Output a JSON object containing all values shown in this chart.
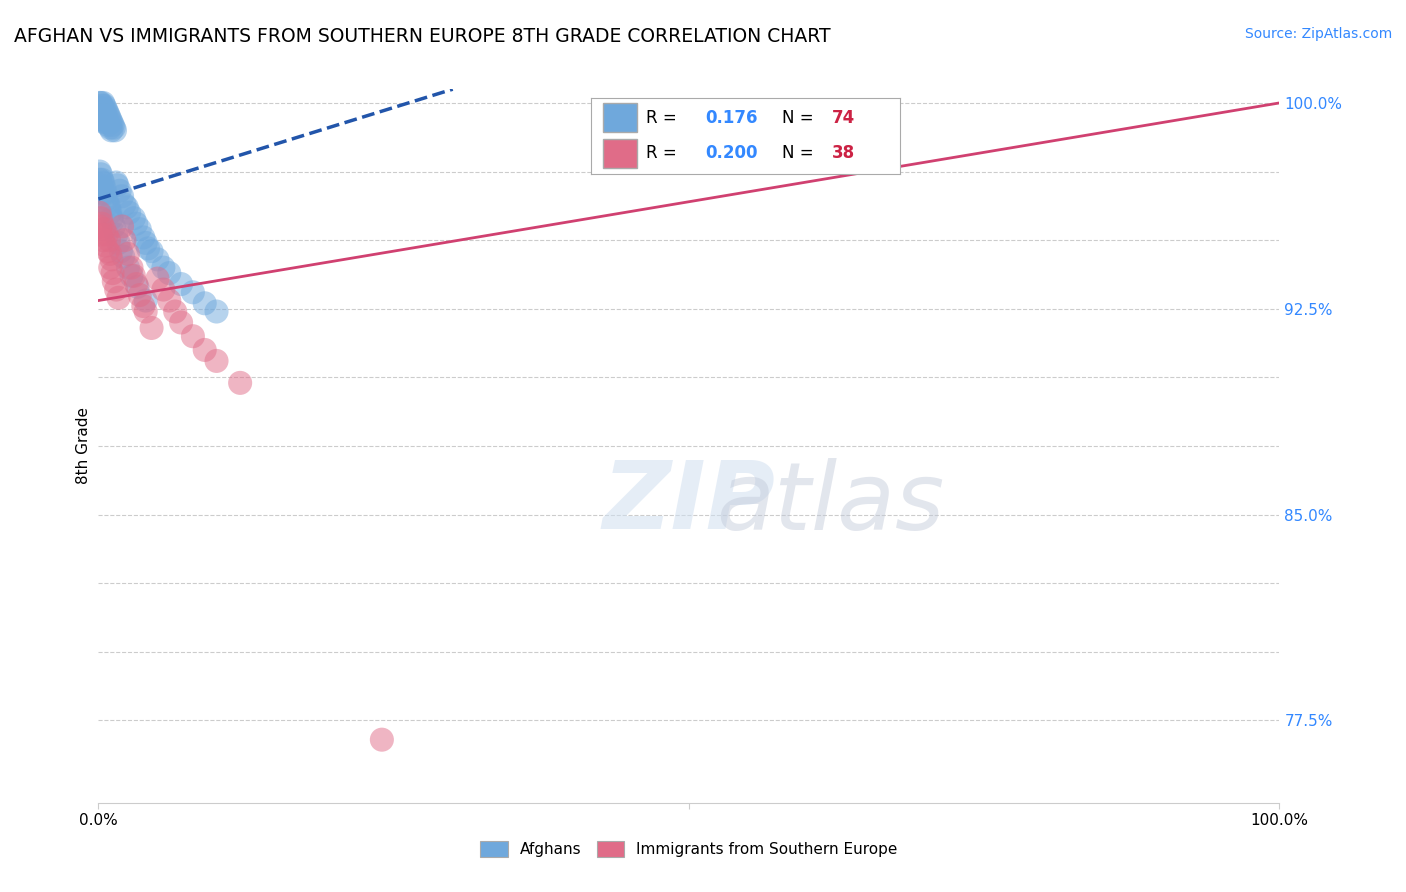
{
  "title": "AFGHAN VS IMMIGRANTS FROM SOUTHERN EUROPE 8TH GRADE CORRELATION CHART",
  "source": "Source: ZipAtlas.com",
  "ylabel": "8th Grade",
  "xlim": [
    0.0,
    1.0
  ],
  "ylim": [
    0.745,
    1.005
  ],
  "blue_R": 0.176,
  "blue_N": 74,
  "pink_R": 0.2,
  "pink_N": 38,
  "blue_color": "#6fa8dc",
  "pink_color": "#e06c88",
  "blue_line_color": "#2255aa",
  "pink_line_color": "#d04070",
  "grid_color": "#cccccc",
  "ytick_positions": [
    0.775,
    0.8,
    0.825,
    0.85,
    0.875,
    0.9,
    0.925,
    0.95,
    0.975,
    1.0
  ],
  "ytick_labels": [
    "77.5%",
    "",
    "",
    "85.0%",
    "",
    "",
    "92.5%",
    "",
    "",
    "100.0%"
  ],
  "blue_scatter_x": [
    0.001,
    0.001,
    0.001,
    0.002,
    0.002,
    0.002,
    0.003,
    0.003,
    0.004,
    0.004,
    0.005,
    0.005,
    0.005,
    0.006,
    0.006,
    0.007,
    0.007,
    0.008,
    0.008,
    0.009,
    0.01,
    0.01,
    0.011,
    0.011,
    0.012,
    0.013,
    0.014,
    0.015,
    0.016,
    0.018,
    0.02,
    0.022,
    0.024,
    0.026,
    0.03,
    0.032,
    0.035,
    0.038,
    0.04,
    0.042,
    0.045,
    0.05,
    0.055,
    0.06,
    0.07,
    0.08,
    0.09,
    0.1,
    0.001,
    0.001,
    0.001,
    0.002,
    0.002,
    0.003,
    0.003,
    0.004,
    0.004,
    0.005,
    0.006,
    0.007,
    0.008,
    0.009,
    0.01,
    0.011,
    0.012,
    0.013,
    0.015,
    0.017,
    0.019,
    0.021,
    0.025,
    0.028,
    0.033,
    0.04
  ],
  "blue_scatter_y": [
    1.0,
    0.998,
    0.996,
    1.0,
    0.998,
    0.994,
    0.999,
    0.996,
    1.0,
    0.997,
    0.999,
    0.996,
    0.993,
    0.998,
    0.994,
    0.997,
    0.993,
    0.996,
    0.992,
    0.995,
    0.994,
    0.991,
    0.993,
    0.99,
    0.992,
    0.991,
    0.99,
    0.971,
    0.97,
    0.968,
    0.966,
    0.963,
    0.962,
    0.96,
    0.958,
    0.956,
    0.954,
    0.951,
    0.949,
    0.947,
    0.946,
    0.943,
    0.94,
    0.938,
    0.934,
    0.931,
    0.927,
    0.924,
    0.975,
    0.972,
    0.969,
    0.974,
    0.97,
    0.972,
    0.969,
    0.971,
    0.967,
    0.969,
    0.967,
    0.965,
    0.963,
    0.962,
    0.96,
    0.958,
    0.957,
    0.955,
    0.952,
    0.949,
    0.946,
    0.944,
    0.94,
    0.937,
    0.933,
    0.928
  ],
  "pink_scatter_x": [
    0.001,
    0.001,
    0.002,
    0.002,
    0.003,
    0.004,
    0.005,
    0.006,
    0.007,
    0.008,
    0.009,
    0.01,
    0.01,
    0.011,
    0.012,
    0.013,
    0.015,
    0.017,
    0.02,
    0.022,
    0.025,
    0.028,
    0.03,
    0.032,
    0.035,
    0.038,
    0.04,
    0.045,
    0.05,
    0.055,
    0.06,
    0.065,
    0.07,
    0.08,
    0.09,
    0.1,
    0.12,
    0.24
  ],
  "pink_scatter_y": [
    0.96,
    0.955,
    0.958,
    0.952,
    0.956,
    0.95,
    0.954,
    0.948,
    0.952,
    0.946,
    0.95,
    0.945,
    0.94,
    0.943,
    0.938,
    0.935,
    0.932,
    0.929,
    0.955,
    0.95,
    0.945,
    0.94,
    0.937,
    0.934,
    0.93,
    0.926,
    0.924,
    0.918,
    0.936,
    0.932,
    0.928,
    0.924,
    0.92,
    0.915,
    0.91,
    0.906,
    0.898,
    0.768
  ],
  "blue_line_x0": 0.0,
  "blue_line_y0": 0.965,
  "blue_line_x1": 0.3,
  "blue_line_y1": 1.005,
  "pink_line_x0": 0.0,
  "pink_line_y0": 0.928,
  "pink_line_x1": 1.0,
  "pink_line_y1": 1.0
}
